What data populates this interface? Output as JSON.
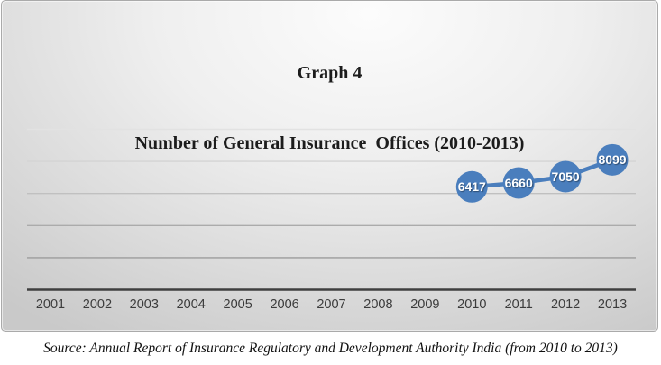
{
  "title": {
    "line1": "Graph 4",
    "line2": "Number of General Insurance  Offices (2010-2013)"
  },
  "source_note": "Source: Annual Report of Insurance Regulatory and Development Authority India (from 2010 to 2013)",
  "colors": {
    "accent_blue": "#4a7ebd",
    "axis_line": "#3f3f3f",
    "tick_label": "#3c3c3c",
    "data_label_text": "#ffffff"
  },
  "chart_data": {
    "type": "line",
    "title": "Graph 4 — Number of General Insurance Offices (2010-2013)",
    "categories": [
      "2001",
      "2002",
      "2003",
      "2004",
      "2005",
      "2006",
      "2007",
      "2008",
      "2009",
      "2010",
      "2011",
      "2012",
      "2013"
    ],
    "series": [
      {
        "name": "Number of General Insurance Offices",
        "values": [
          null,
          null,
          null,
          null,
          null,
          null,
          null,
          null,
          null,
          6417,
          6660,
          7050,
          8099
        ]
      }
    ],
    "data_labels": [
      6417,
      6660,
      7050,
      8099
    ],
    "xlabel": "",
    "ylabel": "",
    "ylim": [
      0,
      10000
    ],
    "gridline_interval": 2000,
    "y_axis_labels_visible": false,
    "grid": "horizontal",
    "legend": "none",
    "marker_style": "filled-circle-bubble"
  }
}
